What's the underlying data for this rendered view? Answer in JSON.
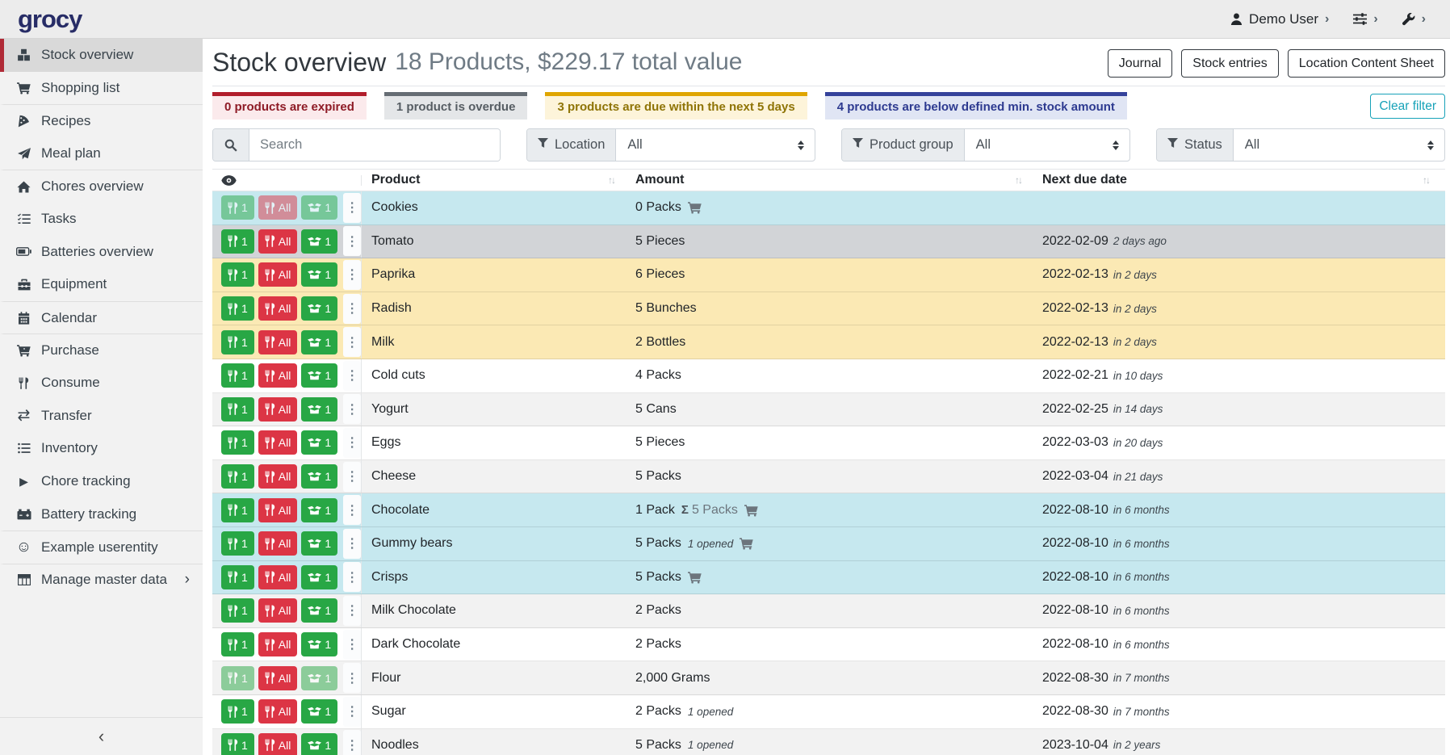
{
  "navbar": {
    "logo": "grocy",
    "user": "Demo User"
  },
  "icons": {
    "chevron_right": "›",
    "chevron_left": "‹",
    "dots_vertical": "⋮",
    "sort": "↑↓",
    "sigma": "Σ",
    "transfer": "⇄",
    "play": "▶",
    "smile": "☺"
  },
  "colors": {
    "logo": "#272c66",
    "accent": "#b02a37",
    "green": "#28a745",
    "red": "#dc3545",
    "clear": "#17a2b8",
    "row_below_min": "#c6e8ef",
    "row_overdue": "#d2d4d7",
    "row_due_soon": "#fbe9b4",
    "row_stripe": "#f2f2f2",
    "row_default": "#ffffff"
  },
  "sidebar": {
    "items": [
      {
        "label": "Stock overview",
        "icon": "boxes",
        "active": true
      },
      {
        "label": "Shopping list",
        "icon": "shopping-cart"
      },
      {
        "label": "Recipes",
        "icon": "pizza-slice",
        "separator": true
      },
      {
        "label": "Meal plan",
        "icon": "paper-plane"
      },
      {
        "label": "Chores overview",
        "icon": "home",
        "separator": true
      },
      {
        "label": "Tasks",
        "icon": "tasks"
      },
      {
        "label": "Batteries overview",
        "icon": "battery"
      },
      {
        "label": "Equipment",
        "icon": "toolbox"
      },
      {
        "label": "Calendar",
        "icon": "calendar",
        "separator": true
      },
      {
        "label": "Purchase",
        "icon": "cart-plus",
        "separator": true
      },
      {
        "label": "Consume",
        "icon": "utensils"
      },
      {
        "label": "Transfer",
        "icon": "exchange"
      },
      {
        "label": "Inventory",
        "icon": "list"
      },
      {
        "label": "Chore tracking",
        "icon": "play"
      },
      {
        "label": "Battery tracking",
        "icon": "car-battery"
      },
      {
        "label": "Example userentity",
        "icon": "smile",
        "separator": true
      },
      {
        "label": "Manage master data",
        "icon": "table",
        "separator": true,
        "chevron": true
      }
    ]
  },
  "header": {
    "title": "Stock overview",
    "subtitle": "18 Products, $229.17 total value",
    "buttons": [
      "Journal",
      "Stock entries",
      "Location Content Sheet"
    ]
  },
  "status_filters": [
    {
      "label": "0 products are expired",
      "name": "expired",
      "border": "#b21e2c",
      "bg": "#fbeaec",
      "text": "#8e1b26"
    },
    {
      "label": "1 product is overdue",
      "name": "overdue",
      "border": "#666d74",
      "bg": "#e4e6e8",
      "text": "#565d63"
    },
    {
      "label": "3 products are due within the next 5 days",
      "name": "due-soon",
      "border": "#dfa500",
      "bg": "#fdf4da",
      "text": "#8f7406"
    },
    {
      "label": "4 products are below defined min. stock amount",
      "name": "below-min",
      "border": "#35429b",
      "bg": "#e0e5f4",
      "text": "#2d3a90"
    }
  ],
  "filters": {
    "clear_label": "Clear filter",
    "search_placeholder": "Search",
    "groups": [
      {
        "label": "Location",
        "value": "All"
      },
      {
        "label": "Product group",
        "value": "All"
      },
      {
        "label": "Status",
        "value": "All"
      }
    ]
  },
  "table": {
    "columns": {
      "product": "Product",
      "amount": "Amount",
      "next_due_date": "Next due date"
    },
    "buttons": {
      "consume_one": "1",
      "consume_all": "All",
      "open_one": "1"
    },
    "rows": [
      {
        "product": "Cookies",
        "amount": "0 Packs",
        "cart": true,
        "due": "",
        "due_rel": "",
        "status": "below-min",
        "disabled": [
          "consume-one",
          "consume-all",
          "open-one"
        ]
      },
      {
        "product": "Tomato",
        "amount": "5 Pieces",
        "due": "2022-02-09",
        "due_rel": "2 days ago",
        "status": "overdue"
      },
      {
        "product": "Paprika",
        "amount": "6 Pieces",
        "due": "2022-02-13",
        "due_rel": "in 2 days",
        "status": "due-soon"
      },
      {
        "product": "Radish",
        "amount": "5 Bunches",
        "due": "2022-02-13",
        "due_rel": "in 2 days",
        "status": "due-soon"
      },
      {
        "product": "Milk",
        "amount": "2 Bottles",
        "due": "2022-02-13",
        "due_rel": "in 2 days",
        "status": "due-soon"
      },
      {
        "product": "Cold cuts",
        "amount": "4 Packs",
        "due": "2022-02-21",
        "due_rel": "in 10 days",
        "status": "even"
      },
      {
        "product": "Yogurt",
        "amount": "5 Cans",
        "due": "2022-02-25",
        "due_rel": "in 14 days",
        "status": "odd"
      },
      {
        "product": "Eggs",
        "amount": "5 Pieces",
        "due": "2022-03-03",
        "due_rel": "in 20 days",
        "status": "even"
      },
      {
        "product": "Cheese",
        "amount": "5 Packs",
        "due": "2022-03-04",
        "due_rel": "in 21 days",
        "status": "odd"
      },
      {
        "product": "Chocolate",
        "amount": "1 Pack",
        "aggregate": "5 Packs",
        "cart": true,
        "due": "2022-08-10",
        "due_rel": "in 6 months",
        "status": "below-min"
      },
      {
        "product": "Gummy bears",
        "amount": "5 Packs",
        "opened": "1 opened",
        "cart": true,
        "due": "2022-08-10",
        "due_rel": "in 6 months",
        "status": "below-min"
      },
      {
        "product": "Crisps",
        "amount": "5 Packs",
        "cart": true,
        "due": "2022-08-10",
        "due_rel": "in 6 months",
        "status": "below-min"
      },
      {
        "product": "Milk Chocolate",
        "amount": "2 Packs",
        "due": "2022-08-10",
        "due_rel": "in 6 months",
        "status": "odd"
      },
      {
        "product": "Dark Chocolate",
        "amount": "2 Packs",
        "due": "2022-08-10",
        "due_rel": "in 6 months",
        "status": "even"
      },
      {
        "product": "Flour",
        "amount": "2,000 Grams",
        "due": "2022-08-30",
        "due_rel": "in 7 months",
        "status": "odd",
        "disabled": [
          "consume-one",
          "open-one"
        ]
      },
      {
        "product": "Sugar",
        "amount": "2 Packs",
        "opened": "1 opened",
        "due": "2022-08-30",
        "due_rel": "in 7 months",
        "status": "even"
      },
      {
        "product": "Noodles",
        "amount": "5 Packs",
        "opened": "1 opened",
        "due": "2023-10-04",
        "due_rel": "in 2 years",
        "status": "odd"
      }
    ]
  }
}
